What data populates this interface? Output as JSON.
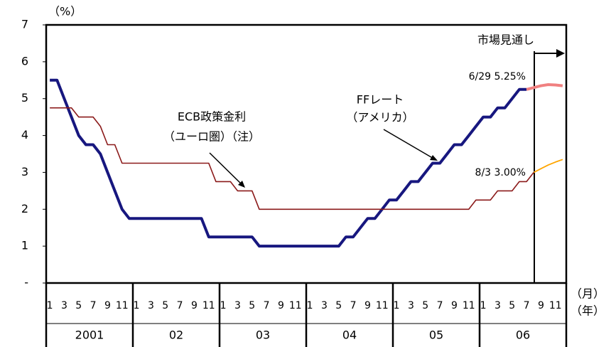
{
  "chart_data": {
    "type": "line",
    "y_unit": "（%）",
    "x_units": [
      "（月）",
      "（年）"
    ],
    "categories": [
      "1",
      null,
      "3",
      null,
      "5",
      null,
      "7",
      null,
      "9",
      null,
      "11",
      null,
      "1",
      null,
      "3",
      null,
      "5",
      null,
      "7",
      null,
      "9",
      null,
      "11",
      null,
      "1",
      null,
      "3",
      null,
      "5",
      null,
      "7",
      null,
      "9",
      null,
      "11",
      null,
      "1",
      null,
      "3",
      null,
      "5",
      null,
      "7",
      null,
      "9",
      null,
      "11",
      null,
      "1",
      null,
      "3",
      null,
      "5",
      null,
      "7",
      null,
      "9",
      null,
      "11",
      null,
      "1",
      null,
      "3",
      null,
      "5",
      null,
      "7",
      null,
      "9",
      null,
      "11",
      null
    ],
    "year_labels": [
      "2001",
      "02",
      "03",
      "04",
      "05",
      "06"
    ],
    "ylim": [
      0,
      7
    ],
    "yticks": [
      {
        "value": 0,
        "label": "-"
      },
      1,
      2,
      3,
      4,
      5,
      6,
      7
    ],
    "series": [
      {
        "name": "FFレート",
        "color": "#17177f",
        "values": [
          5.5,
          5.5,
          5.0,
          4.5,
          4.0,
          3.75,
          3.75,
          3.5,
          3.0,
          2.5,
          2.0,
          1.75,
          1.75,
          1.75,
          1.75,
          1.75,
          1.75,
          1.75,
          1.75,
          1.75,
          1.75,
          1.75,
          1.25,
          1.25,
          1.25,
          1.25,
          1.25,
          1.25,
          1.25,
          1.0,
          1.0,
          1.0,
          1.0,
          1.0,
          1.0,
          1.0,
          1.0,
          1.0,
          1.0,
          1.0,
          1.0,
          1.25,
          1.25,
          1.5,
          1.75,
          1.75,
          2.0,
          2.25,
          2.25,
          2.5,
          2.75,
          2.75,
          3.0,
          3.25,
          3.25,
          3.5,
          3.75,
          3.75,
          4.0,
          4.25,
          4.5,
          4.5,
          4.75,
          4.75,
          5.0,
          5.25,
          5.25,
          null,
          null,
          null,
          null,
          null
        ]
      },
      {
        "name": "ECB政策金利",
        "color": "#8b1a1a",
        "values": [
          4.75,
          4.75,
          4.75,
          4.75,
          4.5,
          4.5,
          4.5,
          4.25,
          3.75,
          3.75,
          3.25,
          3.25,
          3.25,
          3.25,
          3.25,
          3.25,
          3.25,
          3.25,
          3.25,
          3.25,
          3.25,
          3.25,
          3.25,
          2.75,
          2.75,
          2.75,
          2.5,
          2.5,
          2.5,
          2.0,
          2.0,
          2.0,
          2.0,
          2.0,
          2.0,
          2.0,
          2.0,
          2.0,
          2.0,
          2.0,
          2.0,
          2.0,
          2.0,
          2.0,
          2.0,
          2.0,
          2.0,
          2.0,
          2.0,
          2.0,
          2.0,
          2.0,
          2.0,
          2.0,
          2.0,
          2.0,
          2.0,
          2.0,
          2.0,
          2.25,
          2.25,
          2.25,
          2.5,
          2.5,
          2.5,
          2.75,
          2.75,
          3.0,
          null,
          null,
          null,
          null
        ]
      },
      {
        "color": "#f08080",
        "values": [
          null,
          null,
          null,
          null,
          null,
          null,
          null,
          null,
          null,
          null,
          null,
          null,
          null,
          null,
          null,
          null,
          null,
          null,
          null,
          null,
          null,
          null,
          null,
          null,
          null,
          null,
          null,
          null,
          null,
          null,
          null,
          null,
          null,
          null,
          null,
          null,
          null,
          null,
          null,
          null,
          null,
          null,
          null,
          null,
          null,
          null,
          null,
          null,
          null,
          null,
          null,
          null,
          null,
          null,
          null,
          null,
          null,
          null,
          null,
          null,
          null,
          null,
          null,
          null,
          null,
          null,
          5.25,
          5.3,
          5.35,
          5.38,
          5.37,
          5.35
        ]
      },
      {
        "color": "#ffa500",
        "values": [
          null,
          null,
          null,
          null,
          null,
          null,
          null,
          null,
          null,
          null,
          null,
          null,
          null,
          null,
          null,
          null,
          null,
          null,
          null,
          null,
          null,
          null,
          null,
          null,
          null,
          null,
          null,
          null,
          null,
          null,
          null,
          null,
          null,
          null,
          null,
          null,
          null,
          null,
          null,
          null,
          null,
          null,
          null,
          null,
          null,
          null,
          null,
          null,
          null,
          null,
          null,
          null,
          null,
          null,
          null,
          null,
          null,
          null,
          null,
          null,
          null,
          null,
          null,
          null,
          null,
          null,
          null,
          3.0,
          3.1,
          3.2,
          3.28,
          3.35
        ]
      }
    ],
    "annotations": [
      "市場見通し",
      "6/29 5.25%",
      "8/3 3.00%",
      "（ユーロ圏）（注）",
      "（アメリカ）"
    ]
  }
}
